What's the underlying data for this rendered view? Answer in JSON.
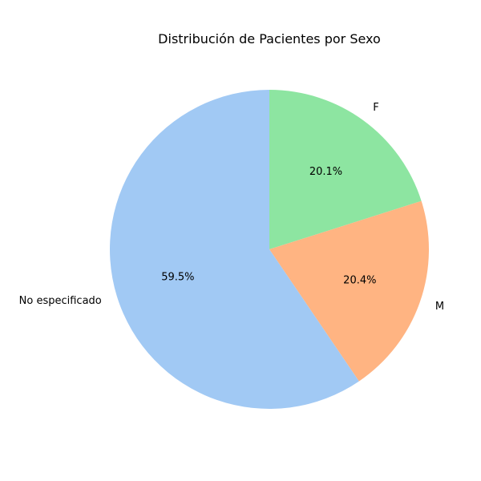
{
  "chart_data": {
    "type": "pie",
    "title": "Distribución de Pacientes por Sexo",
    "slices": [
      {
        "label": "F",
        "percent": 20.1,
        "percent_label": "20.1%",
        "color": "#8de5a1"
      },
      {
        "label": "M",
        "percent": 20.4,
        "percent_label": "20.4%",
        "color": "#ffb482"
      },
      {
        "label": "No especificado",
        "percent": 59.5,
        "percent_label": "59.5%",
        "color": "#a1c9f4"
      }
    ],
    "start_angle_deg": 90,
    "direction": "clockwise"
  }
}
